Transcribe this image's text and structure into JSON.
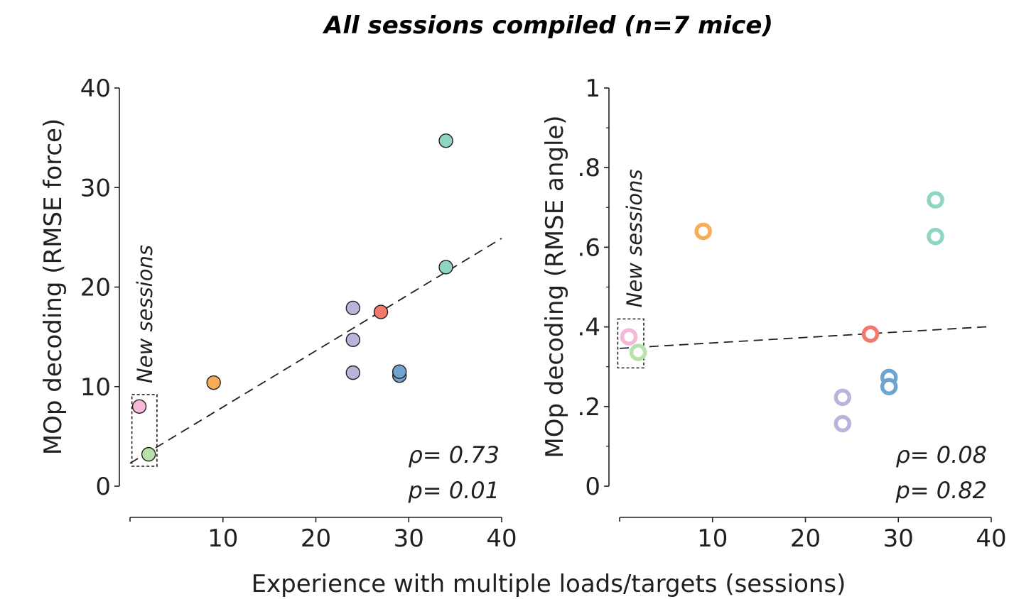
{
  "figure": {
    "title": "All sessions compiled (n=7 mice)",
    "shared_xlabel": "Experience with multiple loads/targets (sessions)"
  },
  "chart_data": [
    {
      "type": "scatter",
      "marker": "filled",
      "ylabel": "MOp decoding (RMSE force)",
      "xlim": [
        0,
        40
      ],
      "ylim": [
        0,
        40
      ],
      "xticks": [
        10,
        20,
        30,
        40
      ],
      "xtick_labels": [
        "10",
        "20",
        "30",
        "40"
      ],
      "yticks": [
        0,
        10,
        20,
        30,
        40
      ],
      "ytick_labels": [
        "0",
        "10",
        "20",
        "30",
        "40"
      ],
      "minor_yticks": [],
      "grid": false,
      "stats": {
        "rho": "ρ= 0.73",
        "p": "p= 0.01"
      },
      "annotation": {
        "label": "New sessions",
        "x_range": [
          0.2,
          2.9
        ],
        "y_range": [
          2.0,
          9.2
        ]
      },
      "fit_line": {
        "x": [
          0,
          40
        ],
        "y": [
          2.3,
          24.9
        ]
      },
      "points": [
        {
          "x": 1,
          "y": 8.0,
          "color": "#f5b8d8"
        },
        {
          "x": 2,
          "y": 3.2,
          "color": "#b7e3a8"
        },
        {
          "x": 9,
          "y": 10.4,
          "color": "#f7ac58"
        },
        {
          "x": 24,
          "y": 17.9,
          "color": "#b9b4dc"
        },
        {
          "x": 24,
          "y": 14.7,
          "color": "#b9b4dc"
        },
        {
          "x": 24,
          "y": 11.4,
          "color": "#b9b4dc"
        },
        {
          "x": 27,
          "y": 17.5,
          "color": "#f2796b"
        },
        {
          "x": 29,
          "y": 11.1,
          "color": "#6fa4cf"
        },
        {
          "x": 29,
          "y": 11.5,
          "color": "#6fa4cf"
        },
        {
          "x": 34,
          "y": 34.7,
          "color": "#8fd5c4"
        },
        {
          "x": 34,
          "y": 22.0,
          "color": "#8fd5c4"
        }
      ]
    },
    {
      "type": "scatter",
      "marker": "open",
      "ylabel": "MOp decoding (RMSE angle)",
      "xlim": [
        0,
        40
      ],
      "ylim": [
        0,
        1
      ],
      "xticks": [
        10,
        20,
        30,
        40
      ],
      "xtick_labels": [
        "10",
        "20",
        "30",
        "40"
      ],
      "yticks": [
        0,
        0.2,
        0.4,
        0.6,
        0.8,
        1
      ],
      "ytick_labels": [
        "0",
        ".2",
        ".4",
        ".6",
        ".8",
        "1"
      ],
      "minor_yticks": [
        0.1,
        0.3,
        0.5,
        0.7,
        0.9
      ],
      "grid": false,
      "stats": {
        "rho": "ρ= 0.08",
        "p": "p= 0.82"
      },
      "annotation": {
        "label": "New sessions",
        "x_range": [
          -0.2,
          2.6
        ],
        "y_range": [
          0.297,
          0.42
        ]
      },
      "fit_line": {
        "x": [
          0,
          40
        ],
        "y": [
          0.346,
          0.401
        ]
      },
      "points": [
        {
          "x": 1,
          "y": 0.375,
          "color": "#f5b8d8"
        },
        {
          "x": 2,
          "y": 0.336,
          "color": "#b7e3a8"
        },
        {
          "x": 9,
          "y": 0.64,
          "color": "#f7ac58"
        },
        {
          "x": 24,
          "y": 0.223,
          "color": "#b9b4dc"
        },
        {
          "x": 24,
          "y": 0.157,
          "color": "#b9b4dc"
        },
        {
          "x": 27,
          "y": 0.382,
          "color": "#f2796b"
        },
        {
          "x": 29,
          "y": 0.273,
          "color": "#6fa4cf"
        },
        {
          "x": 29,
          "y": 0.25,
          "color": "#6fa4cf"
        },
        {
          "x": 34,
          "y": 0.719,
          "color": "#8fd5c4"
        },
        {
          "x": 34,
          "y": 0.627,
          "color": "#8fd5c4"
        }
      ]
    }
  ]
}
